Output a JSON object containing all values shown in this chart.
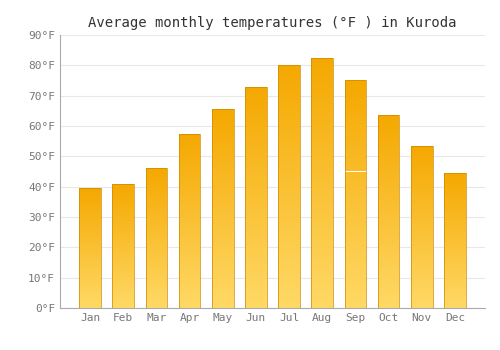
{
  "title": "Average monthly temperatures (°F ) in Kuroda",
  "months": [
    "Jan",
    "Feb",
    "Mar",
    "Apr",
    "May",
    "Jun",
    "Jul",
    "Aug",
    "Sep",
    "Oct",
    "Nov",
    "Dec"
  ],
  "values": [
    39.5,
    41.0,
    46.0,
    57.5,
    65.5,
    73.0,
    80.0,
    82.5,
    75.0,
    63.5,
    53.5,
    44.5
  ],
  "bar_color_top": "#F5A800",
  "bar_color_bottom": "#FFD966",
  "ylim": [
    0,
    90
  ],
  "yticks": [
    0,
    10,
    20,
    30,
    40,
    50,
    60,
    70,
    80,
    90
  ],
  "ytick_labels": [
    "0°F",
    "10°F",
    "20°F",
    "30°F",
    "40°F",
    "50°F",
    "60°F",
    "70°F",
    "80°F",
    "90°F"
  ],
  "background_color": "#ffffff",
  "grid_color": "#e8e8e8",
  "title_fontsize": 10,
  "tick_fontsize": 8
}
